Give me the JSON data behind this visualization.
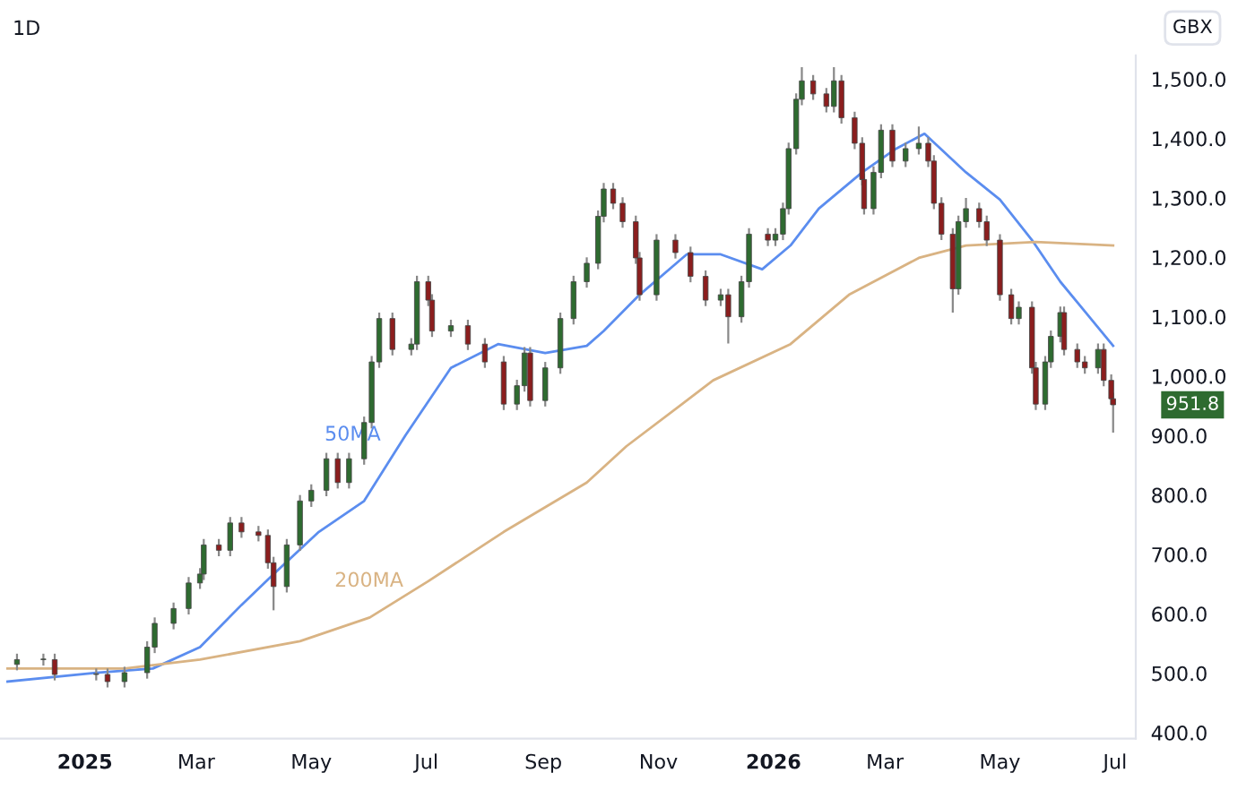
{
  "chart_data": {
    "type": "candlestick",
    "title": "1D",
    "ylabel": "GBX",
    "colors": [
      "#2e6b30",
      "#2e6b30",
      "#8b1e1e",
      "#2e6b30",
      "#8b1e1e",
      "#2e6b30",
      "#2e6b30",
      "#2e6b30",
      "#2e6b30",
      "#2e6b30",
      "#2e6b30",
      "#2e6b30",
      "#8b1e1e",
      "#2e6b30",
      "#8b1e1e",
      "#8b1e1e",
      "#8b1e1e",
      "#8b1e1e",
      "#2e6b30",
      "#2e6b30",
      "#2e6b30",
      "#2e6b30",
      "#8b1e1e",
      "#2e6b30",
      "#2e6b30",
      "#2e6b30",
      "#2e6b30",
      "#8b1e1e",
      "#2e6b30",
      "#2e6b30",
      "#8b1e1e",
      "#8b1e1e",
      "#2e6b30",
      "#8b1e1e",
      "#8b1e1e",
      "#8b1e1e",
      "#2e6b30",
      "#2e6b30",
      "#8b1e1e",
      "#2e6b30",
      "#2e6b30",
      "#2e6b30",
      "#2e6b30",
      "#2e6b30",
      "#2e6b30",
      "#8b1e1e",
      "#8b1e1e",
      "#8b1e1e",
      "#8b1e1e",
      "#2e6b30",
      "#8b1e1e",
      "#8b1e1e",
      "#8b1e1e",
      "#2e6b30",
      "#8b1e1e",
      "#2e6b30",
      "#2e6b30",
      "#8b1e1e",
      "#2e6b30",
      "#2e6b30",
      "#2e6b30",
      "#2e6b30",
      "#2e6b30",
      "#8b1e1e",
      "#8b1e1e",
      "#2e6b30",
      "#8b1e1e",
      "#8b1e1e",
      "#8b1e1e",
      "#8b1e1e",
      "#2e6b30",
      "#2e6b30",
      "#8b1e1e",
      "#2e6b30",
      "#2e6b30",
      "#8b1e1e",
      "#8b1e1e",
      "#8b1e1e",
      "#8b1e1e",
      "#2e6b30",
      "#2e6b30",
      "#8b1e1e",
      "#8b1e1e",
      "#8b1e1e",
      "#8b1e1e",
      "#2e6b30",
      "#8b1e1e",
      "#8b1e1e",
      "#2e6b30",
      "#2e6b30",
      "#2e6b30",
      "#8b1e1e",
      "#8b1e1e",
      "#8b1e1e",
      "#2e6b30",
      "#8b1e1e",
      "#8b1e1e",
      "#8b1e1e"
    ],
    "x": [
      "2024-11-26",
      "2024-12-10",
      "2024-12-16",
      "2025-01-07",
      "2025-01-13",
      "2025-01-22",
      "2025-02-03",
      "2025-02-07",
      "2025-02-17",
      "2025-02-25",
      "2025-03-03",
      "2025-03-05",
      "2025-03-13",
      "2025-03-19",
      "2025-03-25",
      "2025-04-03",
      "2025-04-08",
      "2025-04-11",
      "2025-04-18",
      "2025-04-25",
      "2025-05-01",
      "2025-05-09",
      "2025-05-15",
      "2025-05-21",
      "2025-05-29",
      "2025-06-02",
      "2025-06-06",
      "2025-06-13",
      "2025-06-23",
      "2025-06-26",
      "2025-07-02",
      "2025-07-04",
      "2025-07-14",
      "2025-07-23",
      "2025-08-01",
      "2025-08-11",
      "2025-08-18",
      "2025-08-22",
      "2025-08-25",
      "2025-09-02",
      "2025-09-10",
      "2025-09-17",
      "2025-09-24",
      "2025-09-30",
      "2025-10-03",
      "2025-10-08",
      "2025-10-13",
      "2025-10-20",
      "2025-10-22",
      "2025-10-31",
      "2025-11-10",
      "2025-11-18",
      "2025-11-26",
      "2025-12-04",
      "2025-12-08",
      "2025-12-15",
      "2025-12-19",
      "2025-12-29",
      "2026-01-02",
      "2026-01-06",
      "2026-01-09",
      "2026-01-13",
      "2026-01-16",
      "2026-01-22",
      "2026-01-29",
      "2026-02-02",
      "2026-02-06",
      "2026-02-13",
      "2026-02-17",
      "2026-02-18",
      "2026-02-23",
      "2026-02-27",
      "2026-03-05",
      "2026-03-12",
      "2026-03-19",
      "2026-03-24",
      "2026-03-27",
      "2026-03-31",
      "2026-04-06",
      "2026-04-09",
      "2026-04-13",
      "2026-04-20",
      "2026-04-24",
      "2026-05-01",
      "2026-05-07",
      "2026-05-11",
      "2026-05-18",
      "2026-05-20",
      "2026-05-25",
      "2026-05-28",
      "2026-06-02",
      "2026-06-04",
      "2026-06-11",
      "2026-06-15",
      "2026-06-22",
      "2026-06-25",
      "2026-06-29",
      "2026-06-30"
    ],
    "ohlc": [
      [
        515,
        533,
        505,
        523
      ],
      [
        523,
        533,
        513,
        523
      ],
      [
        523,
        533,
        488,
        498
      ],
      [
        498,
        508,
        488,
        498
      ],
      [
        498,
        508,
        476,
        486
      ],
      [
        486,
        511,
        476,
        501
      ],
      [
        501,
        554,
        491,
        544
      ],
      [
        544,
        594,
        534,
        584
      ],
      [
        584,
        619,
        574,
        609
      ],
      [
        609,
        662,
        599,
        652
      ],
      [
        652,
        677,
        642,
        667
      ],
      [
        667,
        726,
        657,
        716
      ],
      [
        716,
        726,
        697,
        707
      ],
      [
        707,
        763,
        697,
        753
      ],
      [
        753,
        763,
        728,
        738
      ],
      [
        738,
        748,
        722,
        732
      ],
      [
        732,
        742,
        676,
        686
      ],
      [
        686,
        696,
        606,
        646
      ],
      [
        646,
        726,
        636,
        716
      ],
      [
        716,
        800,
        706,
        790
      ],
      [
        790,
        818,
        780,
        808
      ],
      [
        808,
        871,
        798,
        861
      ],
      [
        861,
        871,
        811,
        821
      ],
      [
        821,
        871,
        811,
        861
      ],
      [
        861,
        932,
        851,
        922
      ],
      [
        922,
        1034,
        912,
        1024
      ],
      [
        1024,
        1107,
        1014,
        1097
      ],
      [
        1097,
        1107,
        1035,
        1045
      ],
      [
        1045,
        1064,
        1035,
        1054
      ],
      [
        1054,
        1169,
        1044,
        1159
      ],
      [
        1159,
        1169,
        1118,
        1128
      ],
      [
        1128,
        1138,
        1066,
        1076
      ],
      [
        1076,
        1095,
        1066,
        1085
      ],
      [
        1085,
        1095,
        1044,
        1054
      ],
      [
        1054,
        1064,
        1014,
        1024
      ],
      [
        1024,
        1034,
        943,
        953
      ],
      [
        953,
        994,
        943,
        984
      ],
      [
        984,
        1049,
        974,
        1039
      ],
      [
        1039,
        1049,
        949,
        959
      ],
      [
        959,
        1024,
        949,
        1014
      ],
      [
        1014,
        1107,
        1004,
        1097
      ],
      [
        1097,
        1169,
        1087,
        1159
      ],
      [
        1159,
        1200,
        1149,
        1190
      ],
      [
        1190,
        1279,
        1180,
        1269
      ],
      [
        1269,
        1325,
        1259,
        1315
      ],
      [
        1315,
        1325,
        1281,
        1291
      ],
      [
        1291,
        1301,
        1250,
        1260
      ],
      [
        1260,
        1270,
        1189,
        1199
      ],
      [
        1199,
        1209,
        1127,
        1137
      ],
      [
        1137,
        1239,
        1127,
        1229
      ],
      [
        1229,
        1239,
        1198,
        1208
      ],
      [
        1208,
        1218,
        1158,
        1168
      ],
      [
        1168,
        1178,
        1118,
        1128
      ],
      [
        1128,
        1147,
        1118,
        1137
      ],
      [
        1137,
        1147,
        1055,
        1100
      ],
      [
        1100,
        1169,
        1090,
        1159
      ],
      [
        1159,
        1249,
        1149,
        1239
      ],
      [
        1239,
        1249,
        1219,
        1229
      ],
      [
        1229,
        1249,
        1219,
        1239
      ],
      [
        1239,
        1292,
        1229,
        1282
      ],
      [
        1282,
        1393,
        1272,
        1383
      ],
      [
        1383,
        1476,
        1373,
        1466
      ],
      [
        1466,
        1520,
        1456,
        1497
      ],
      [
        1497,
        1507,
        1465,
        1475
      ],
      [
        1475,
        1485,
        1444,
        1454
      ],
      [
        1454,
        1520,
        1444,
        1497
      ],
      [
        1497,
        1507,
        1425,
        1435
      ],
      [
        1435,
        1445,
        1382,
        1392
      ],
      [
        1392,
        1402,
        1321,
        1331
      ],
      [
        1331,
        1341,
        1272,
        1282
      ],
      [
        1282,
        1353,
        1272,
        1343
      ],
      [
        1343,
        1424,
        1333,
        1414
      ],
      [
        1414,
        1424,
        1352,
        1362
      ],
      [
        1362,
        1393,
        1352,
        1383
      ],
      [
        1383,
        1420,
        1373,
        1392
      ],
      [
        1392,
        1402,
        1352,
        1362
      ],
      [
        1362,
        1372,
        1281,
        1291
      ],
      [
        1291,
        1301,
        1229,
        1239
      ],
      [
        1239,
        1249,
        1107,
        1147
      ],
      [
        1147,
        1270,
        1137,
        1260
      ],
      [
        1260,
        1300,
        1250,
        1282
      ],
      [
        1282,
        1292,
        1250,
        1260
      ],
      [
        1260,
        1270,
        1219,
        1229
      ],
      [
        1229,
        1239,
        1127,
        1137
      ],
      [
        1137,
        1147,
        1087,
        1097
      ],
      [
        1097,
        1126,
        1087,
        1116
      ],
      [
        1116,
        1126,
        1004,
        1014
      ],
      [
        1014,
        1024,
        943,
        953
      ],
      [
        953,
        1034,
        943,
        1024
      ],
      [
        1024,
        1077,
        1014,
        1067
      ],
      [
        1067,
        1117,
        1057,
        1107
      ],
      [
        1107,
        1117,
        1035,
        1045
      ],
      [
        1045,
        1055,
        1014,
        1024
      ],
      [
        1024,
        1034,
        1004,
        1014
      ],
      [
        1014,
        1055,
        1004,
        1045
      ],
      [
        1045,
        1055,
        983,
        993
      ],
      [
        993,
        1003,
        952,
        962
      ],
      [
        962,
        972,
        905,
        951.8
      ]
    ],
    "series": [
      {
        "type": "line",
        "name": "50MA",
        "color": "#5b8def",
        "x": [
          "2024-11-21",
          "2025-01-07",
          "2025-02-06",
          "2025-03-03",
          "2025-03-25",
          "2025-04-11",
          "2025-05-05",
          "2025-05-29",
          "2025-06-20",
          "2025-07-14",
          "2025-08-08",
          "2025-09-02",
          "2025-09-24",
          "2025-10-03",
          "2025-10-22",
          "2025-11-16",
          "2025-12-04",
          "2025-12-26",
          "2026-01-10",
          "2026-01-25",
          "2026-02-17",
          "2026-03-07",
          "2026-03-22",
          "2026-04-13",
          "2026-05-01",
          "2026-05-18",
          "2026-06-02",
          "2026-06-14",
          "2026-06-30"
        ],
        "values": [
          486,
          501,
          508,
          544,
          615,
          667,
          738,
          790,
          901,
          1014,
          1054,
          1039,
          1051,
          1076,
          1137,
          1205,
          1205,
          1180,
          1220,
          1282,
          1343,
          1383,
          1408,
          1343,
          1297,
          1229,
          1159,
          1113,
          1051
        ]
      },
      {
        "type": "line",
        "name": "200MA",
        "color": "#d9b383",
        "x": [
          "2024-11-21",
          "2025-01-22",
          "2025-03-03",
          "2025-04-25",
          "2025-06-01",
          "2025-07-02",
          "2025-08-11",
          "2025-09-24",
          "2025-10-15",
          "2025-11-30",
          "2026-01-10",
          "2026-02-10",
          "2026-03-19",
          "2026-04-13",
          "2026-05-20",
          "2026-06-30"
        ],
        "values": [
          508,
          508,
          523,
          554,
          594,
          655,
          738,
          821,
          882,
          993,
          1054,
          1137,
          1199,
          1220,
          1226,
          1220
        ]
      }
    ],
    "annotations": [
      {
        "text": "951.8",
        "x": "2026-06-30",
        "y": 951.8
      }
    ],
    "xlim": [
      "2024-11-17",
      "2026-07-12"
    ],
    "ylim": [
      390,
      1540
    ],
    "xticks": [
      {
        "value": "2025-01-01",
        "label": "2025"
      },
      {
        "value": "2025-03-01",
        "label": "Mar"
      },
      {
        "value": "2025-05-01",
        "label": "May"
      },
      {
        "value": "2025-07-01",
        "label": "Jul"
      },
      {
        "value": "2025-09-01",
        "label": "Sep"
      },
      {
        "value": "2025-11-01",
        "label": "Nov"
      },
      {
        "value": "2026-01-01",
        "label": "2026"
      },
      {
        "value": "2026-03-01",
        "label": "Mar"
      },
      {
        "value": "2026-05-01",
        "label": "May"
      },
      {
        "value": "2026-07-01",
        "label": "Jul"
      }
    ],
    "yticks": [
      {
        "value": 400,
        "label": "400.0"
      },
      {
        "value": 500,
        "label": "500.0"
      },
      {
        "value": 600,
        "label": "600.0"
      },
      {
        "value": 700,
        "label": "700.0"
      },
      {
        "value": 800,
        "label": "800.0"
      },
      {
        "value": 900,
        "label": "900.0"
      },
      {
        "value": 1000,
        "label": "1,000.0"
      },
      {
        "value": 1100,
        "label": "1,100.0"
      },
      {
        "value": 1200,
        "label": "1,200.0"
      },
      {
        "value": 1300,
        "label": "1,300.0"
      },
      {
        "value": 1400,
        "label": "1,400.0"
      },
      {
        "value": 1500,
        "label": "1,500.0"
      }
    ]
  }
}
